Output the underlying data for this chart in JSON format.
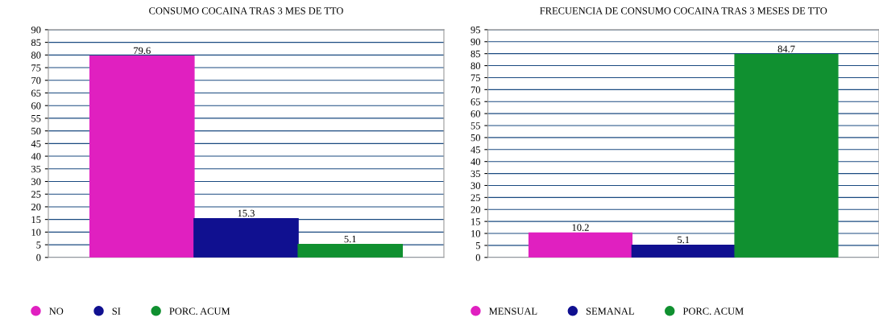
{
  "chart_data": [
    {
      "type": "bar",
      "title": "CONSUMO COCAINA TRAS 3 MES DE TTO",
      "categories": [
        null,
        null,
        null
      ],
      "series": [
        {
          "name": "NO",
          "color": "#e020c0",
          "values": [
            79.6,
            null,
            null
          ]
        },
        {
          "name": "SI",
          "color": "#101090",
          "values": [
            null,
            15.3,
            null
          ]
        },
        {
          "name": "PORC. ACUM",
          "color": "#109030",
          "values": [
            null,
            null,
            5.1
          ]
        }
      ],
      "ylim": [
        0,
        90
      ],
      "yticks": [
        0,
        5,
        10,
        15,
        20,
        25,
        30,
        35,
        40,
        45,
        50,
        55,
        60,
        65,
        70,
        75,
        80,
        85,
        90
      ],
      "grid": "y",
      "legend": "bottom left",
      "data_labels": true,
      "tick_labels": "y"
    },
    {
      "type": "bar",
      "title": "FRECUENCIA DE CONSUMO COCAINA TRAS 3 MESES DE TTO",
      "categories": [
        null,
        null,
        null
      ],
      "series": [
        {
          "name": "MENSUAL",
          "color": "#e020c0",
          "values": [
            10.2,
            null,
            null
          ]
        },
        {
          "name": "SEMANAL",
          "color": "#101090",
          "values": [
            null,
            5.1,
            null
          ]
        },
        {
          "name": "PORC. ACUM",
          "color": "#109030",
          "values": [
            null,
            null,
            84.7
          ]
        }
      ],
      "ylim": [
        0,
        95
      ],
      "yticks": [
        0,
        5,
        10,
        15,
        20,
        25,
        30,
        35,
        40,
        45,
        50,
        55,
        60,
        65,
        70,
        75,
        80,
        85,
        90,
        95
      ],
      "grid": "y",
      "legend": "bottom left",
      "data_labels": true,
      "tick_labels": "y"
    }
  ]
}
